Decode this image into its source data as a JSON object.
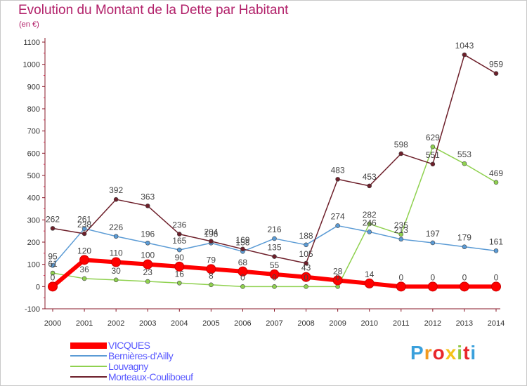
{
  "chart_data": {
    "type": "line",
    "title": "Evolution du Montant de la Dette par Habitant",
    "subtitle": "(en €)",
    "xlabel": "",
    "ylabel": "",
    "ylim": [
      -100,
      1100
    ],
    "yticks": [
      -100,
      0,
      100,
      200,
      300,
      400,
      500,
      600,
      700,
      800,
      900,
      1000,
      1100
    ],
    "x": [
      "2000",
      "2001",
      "2002",
      "2003",
      "2004",
      "2005",
      "2006",
      "2007",
      "2008",
      "2009",
      "2010",
      "2011",
      "2012",
      "2013",
      "2014"
    ],
    "grid": false,
    "legend_position": "bottom-left",
    "series": [
      {
        "name": "VICQUES",
        "color": "#ff0000",
        "values": [
          0,
          120,
          110,
          100,
          90,
          79,
          68,
          55,
          43,
          28,
          14,
          0,
          0,
          0,
          0
        ],
        "labels": [
          "0",
          "120",
          "110",
          "100",
          "90",
          "79",
          "68",
          "55",
          "43",
          "28",
          "14",
          "0",
          "0",
          "0",
          "0"
        ]
      },
      {
        "name": "Bernières-d'Ailly",
        "color": "#5b9bd5",
        "values": [
          95,
          261,
          226,
          196,
          165,
          196,
          158,
          216,
          188,
          274,
          246,
          213,
          197,
          179,
          161
        ],
        "labels": [
          "95",
          "261",
          "226",
          "196",
          "165",
          "196",
          "158",
          "216",
          "188",
          "274",
          "246",
          "213",
          "197",
          "179",
          "161"
        ]
      },
      {
        "name": "Louvagny",
        "color": "#8fd14f",
        "values": [
          61,
          36,
          30,
          23,
          16,
          8,
          0,
          0,
          0,
          0,
          282,
          235,
          629,
          553,
          469
        ],
        "labels": [
          "61",
          "36",
          "30",
          "23",
          "16",
          "8",
          "0",
          "0",
          "0",
          "0",
          "282",
          "235",
          "629",
          "553",
          "469"
        ]
      },
      {
        "name": "Morteaux-Couliboeuf",
        "color": "#6d1f2a",
        "values": [
          262,
          238,
          392,
          363,
          236,
          204,
          169,
          135,
          105,
          483,
          453,
          598,
          551,
          1043,
          959
        ],
        "labels": [
          "262",
          "238",
          "392",
          "363",
          "236",
          "204",
          "169",
          "135",
          "105",
          "483",
          "453",
          "598",
          "551",
          "1043",
          "959"
        ]
      }
    ]
  },
  "brand": {
    "letters": [
      "P",
      "r",
      "o",
      "x",
      "i",
      "t",
      "i"
    ],
    "colors": [
      "#3aa0dc",
      "#f39a1e",
      "#e8262a",
      "#f5c31a",
      "#8cc63f",
      "#e8262a",
      "#3aa0dc"
    ]
  }
}
